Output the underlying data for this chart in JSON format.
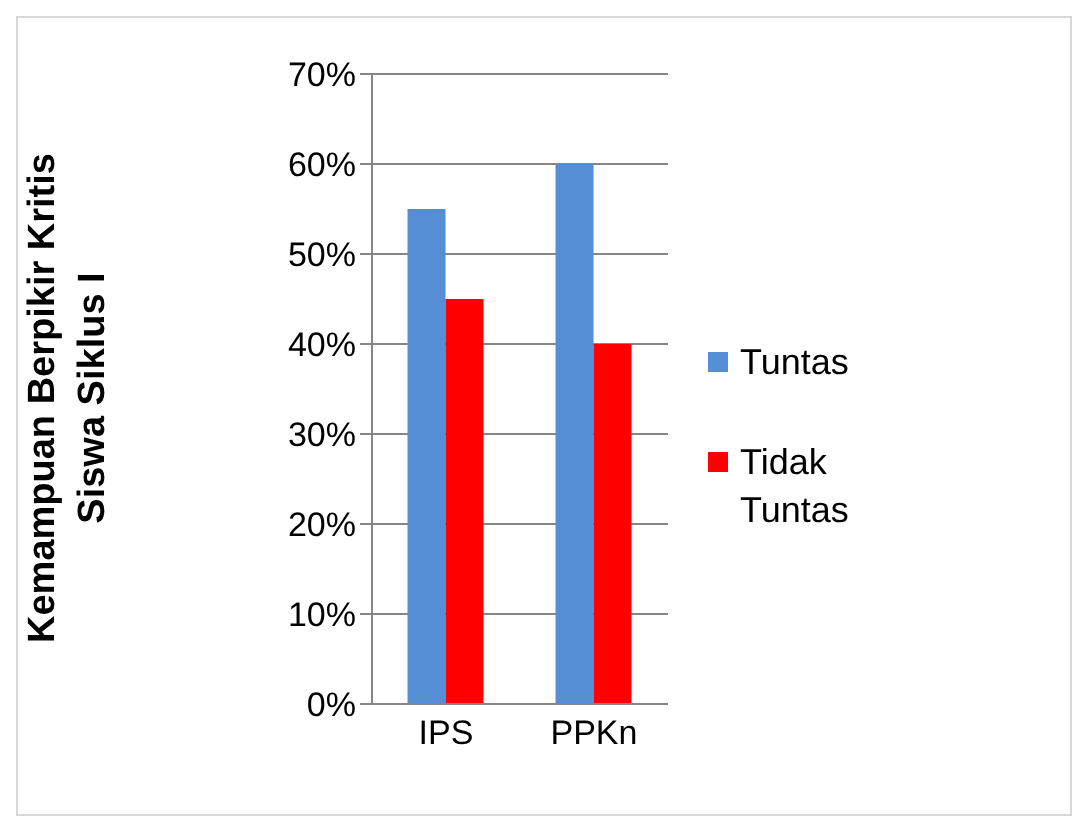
{
  "chart_data": {
    "type": "bar",
    "ylabel": "Kemampuan Berpikir Kritis Siswa Siklus I",
    "categories": [
      "IPS",
      "PPKn"
    ],
    "series": [
      {
        "name": "Tuntas",
        "color": "#558ed5",
        "values": [
          55,
          60
        ]
      },
      {
        "name": "Tidak Tuntas",
        "color": "#ff0000",
        "values": [
          45,
          40
        ]
      }
    ],
    "ylim": [
      0,
      70
    ],
    "yticks": [
      {
        "value": 0,
        "label": "0%"
      },
      {
        "value": 10,
        "label": "10%"
      },
      {
        "value": 20,
        "label": "20%"
      },
      {
        "value": 30,
        "label": "30%"
      },
      {
        "value": 40,
        "label": "40%"
      },
      {
        "value": 50,
        "label": "50%"
      },
      {
        "value": 60,
        "label": "60%"
      },
      {
        "value": 70,
        "label": "70%"
      }
    ],
    "grid": "y",
    "legend": "right"
  }
}
